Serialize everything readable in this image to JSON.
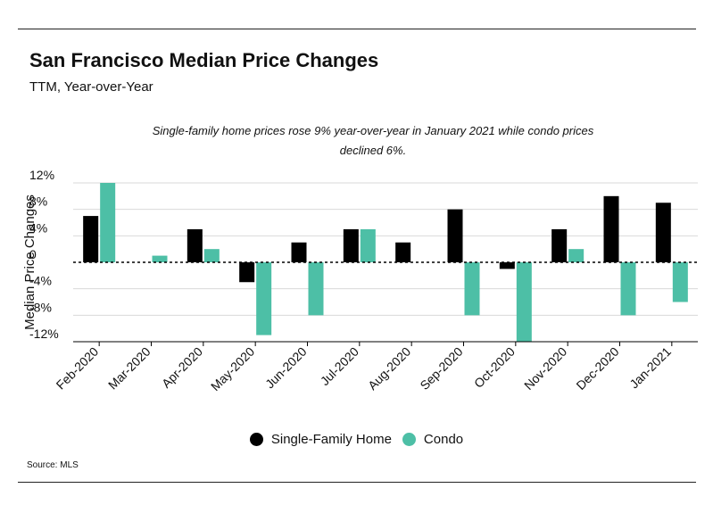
{
  "header": {
    "title": "San Francisco Median Price Changes",
    "subtitle": "TTM, Year-over-Year"
  },
  "annotation": "Single-family home prices rose 9% year-over-year in January 2021 while condo prices declined 6%.",
  "legend": {
    "items": [
      {
        "label": "Single-Family Home",
        "color": "#000000"
      },
      {
        "label": "Condo",
        "color": "#4dbfa6"
      }
    ]
  },
  "source": "Source:  MLS",
  "chart_data": {
    "type": "bar",
    "title": "San Francisco Median Price Changes",
    "subtitle": "TTM, Year-over-Year",
    "ylabel": "Median Price Changes",
    "xlabel": "",
    "categories": [
      "Feb-2020",
      "Mar-2020",
      "Apr-2020",
      "May-2020",
      "Jun-2020",
      "Jul-2020",
      "Aug-2020",
      "Sep-2020",
      "Oct-2020",
      "Nov-2020",
      "Dec-2020",
      "Jan-2021"
    ],
    "series": [
      {
        "name": "Single-Family Home",
        "color": "#000000",
        "values": [
          7,
          0,
          5,
          -3,
          3,
          5,
          3,
          8,
          -1,
          5,
          10,
          9
        ]
      },
      {
        "name": "Condo",
        "color": "#4dbfa6",
        "values": [
          12,
          1,
          2,
          -11,
          -8,
          5,
          0,
          -8,
          -12,
          2,
          -8,
          -6
        ]
      }
    ],
    "ylim": [
      -12,
      12
    ],
    "yticks": [
      12,
      8,
      4,
      0,
      -4,
      -8,
      -12
    ],
    "ytick_labels": [
      "12%",
      "8%",
      "4%",
      "0",
      "-4%",
      "-8%",
      "-12%"
    ],
    "grid": "horizontal",
    "zero_line": "dashed",
    "legend_position": "bottom-center"
  }
}
